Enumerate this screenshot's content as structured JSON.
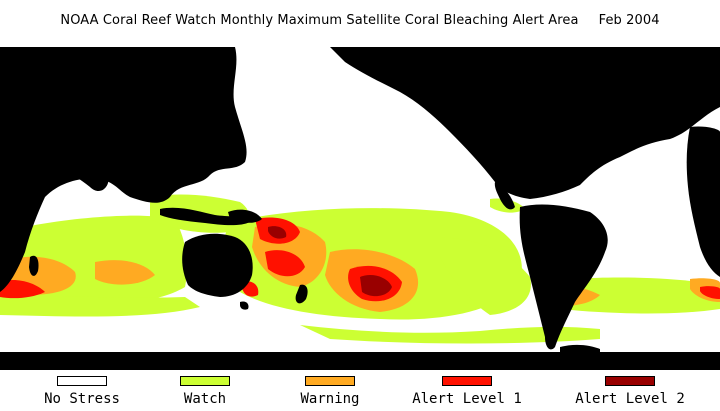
{
  "header": {
    "title": "NOAA Coral Reef Watch Monthly Maximum Satellite Coral Bleaching Alert Area",
    "date": "Feb 2004"
  },
  "map": {
    "projection": "equirectangular, Pacific-centered",
    "land_color": "#000000",
    "no_data_color": "#ffffff"
  },
  "legend": {
    "items": [
      {
        "label": "No Stress",
        "color": "#ffffff"
      },
      {
        "label": "Watch",
        "color": "#ccff33"
      },
      {
        "label": "Warning",
        "color": "#ffaa22"
      },
      {
        "label": "Alert Level 1",
        "color": "#ff1100"
      },
      {
        "label": "Alert Level 2",
        "color": "#990000"
      }
    ]
  }
}
